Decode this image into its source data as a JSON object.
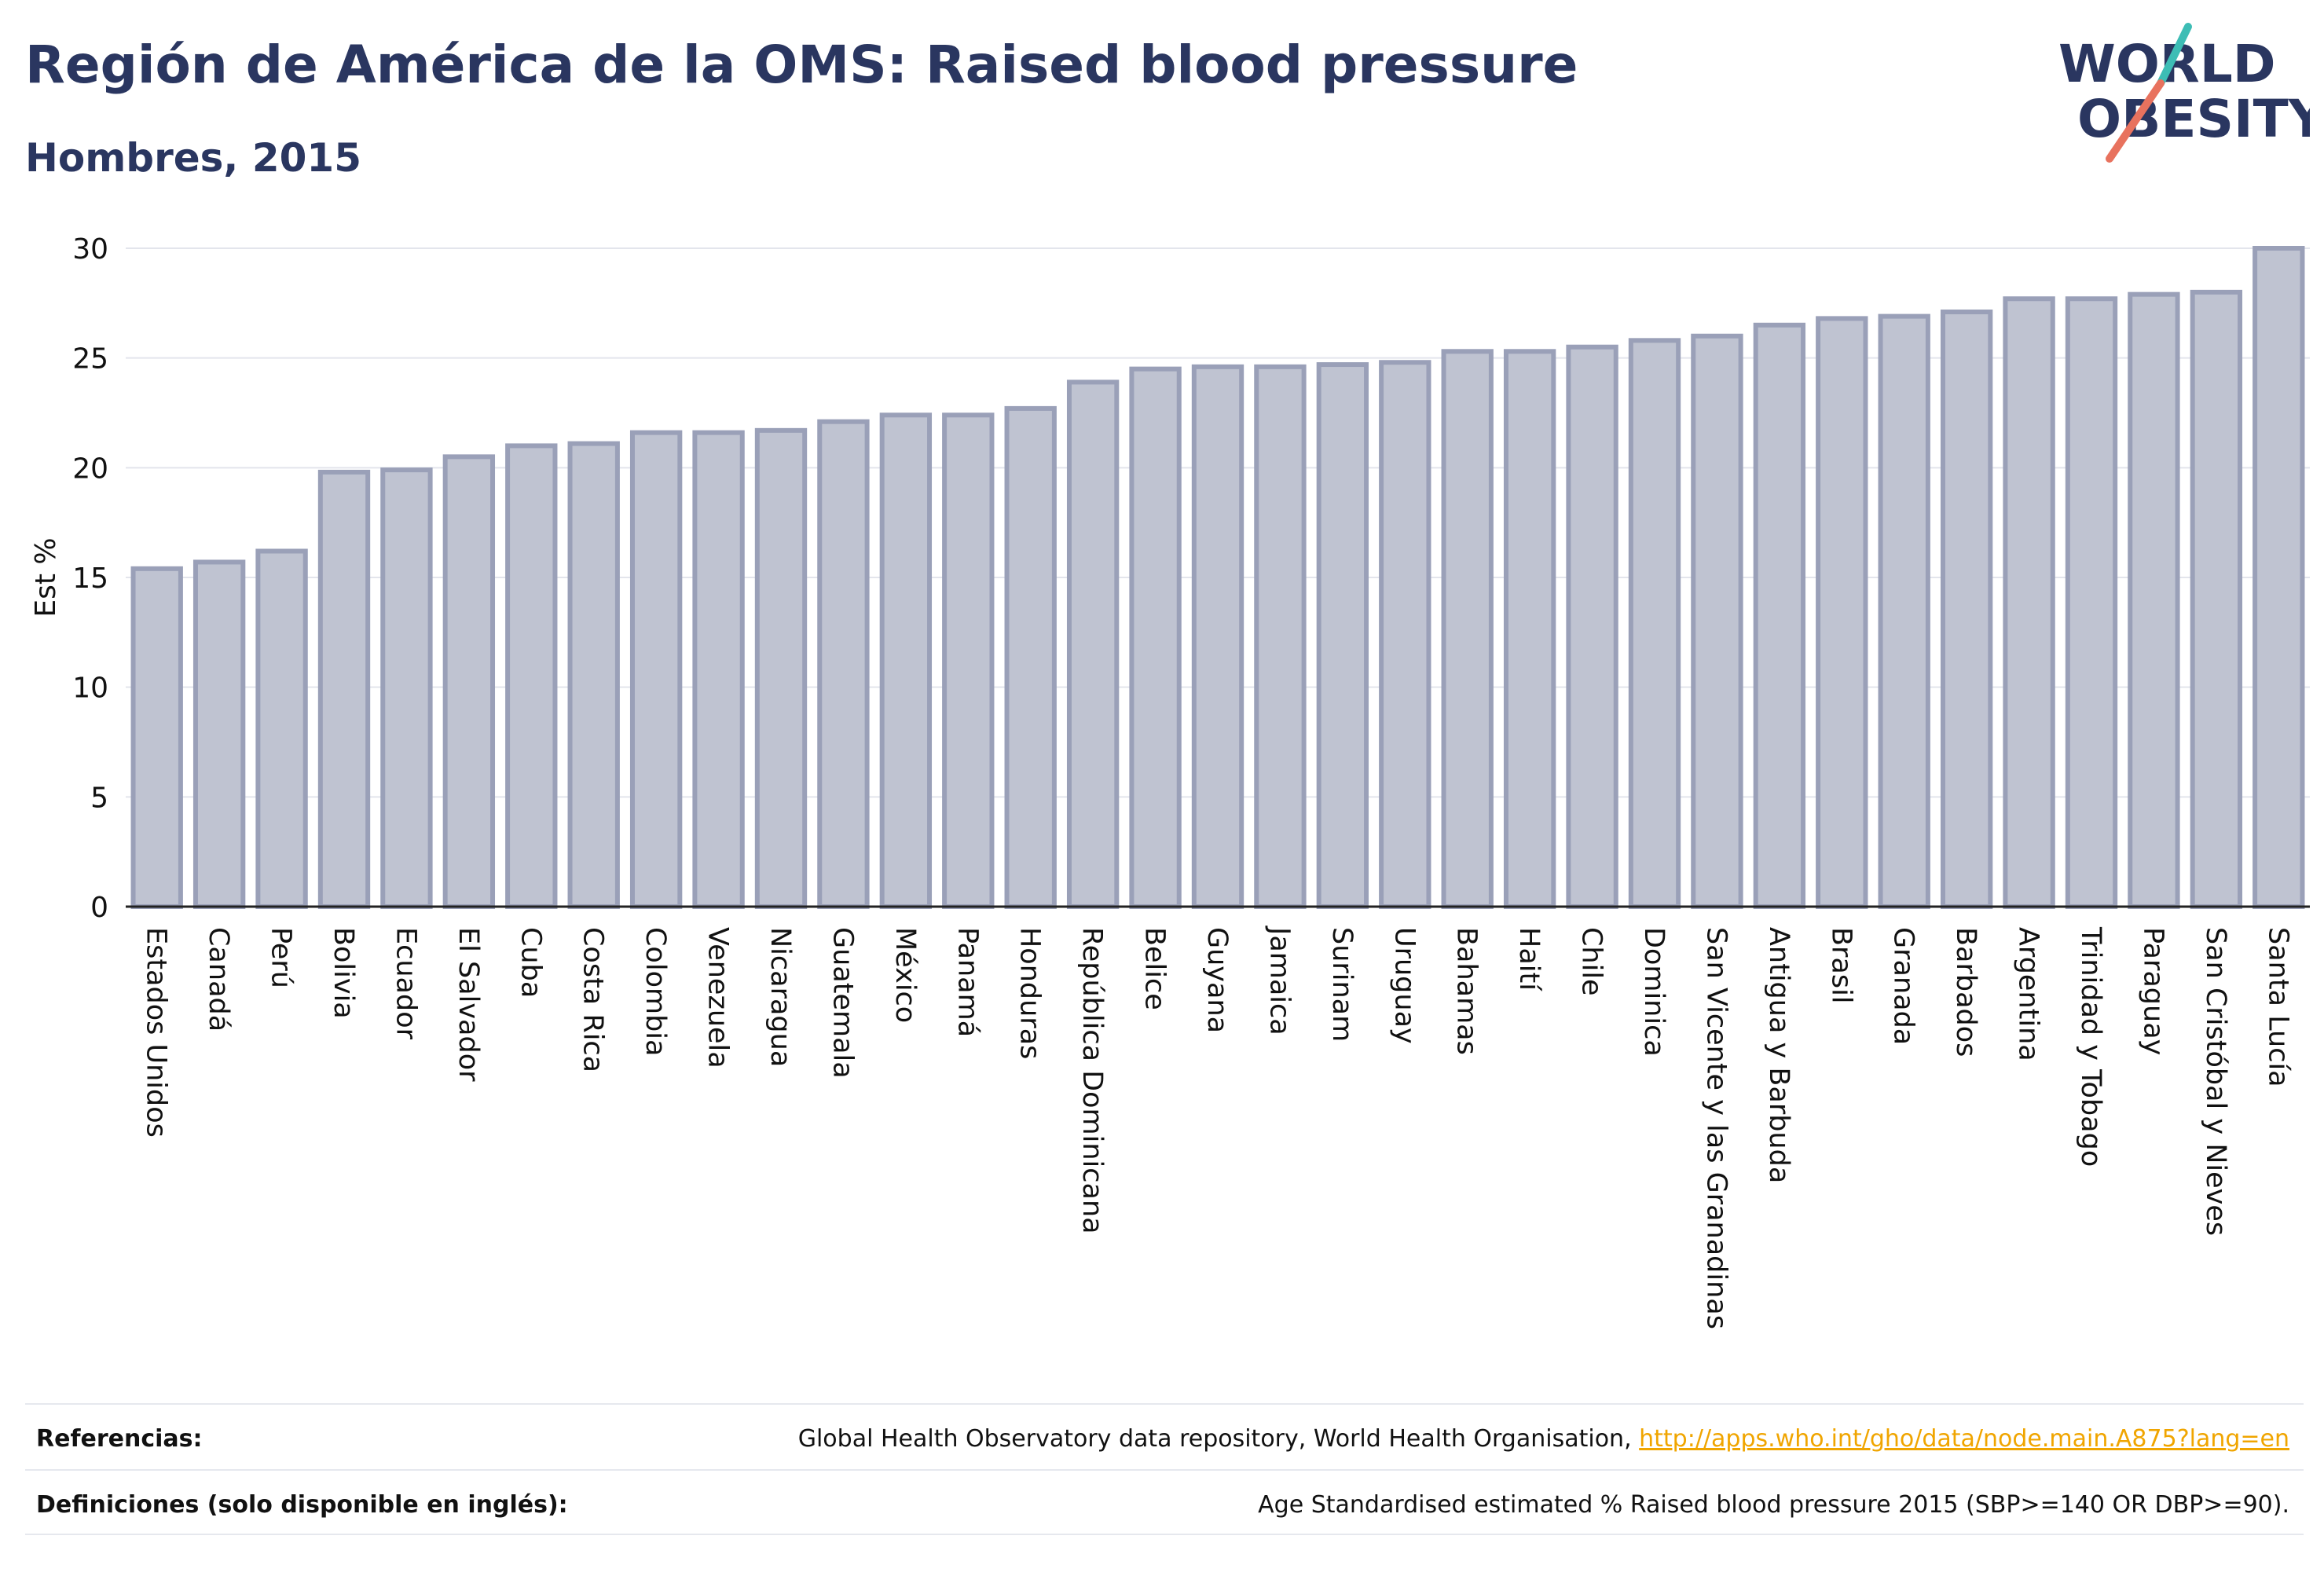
{
  "header": {
    "title": "Región de América de la OMS: Raised blood pressure",
    "subtitle": "Hombres, 2015"
  },
  "logo": {
    "line1": "WORLD",
    "line2": "OBESITY",
    "colors": {
      "text": "#2a3660",
      "slash_teal": "#3dbdb5",
      "slash_coral": "#e8725e"
    }
  },
  "chart_data": {
    "type": "bar",
    "title": "",
    "xlabel": "",
    "ylabel": "Est %",
    "ylim": [
      0,
      30
    ],
    "yticks": [
      0,
      5,
      10,
      15,
      20,
      25,
      30
    ],
    "grid": true,
    "bar_color": "#bfc3d1",
    "bar_edge_color": "#9aa0b8",
    "categories": [
      "Estados Unidos",
      "Canadá",
      "Perú",
      "Bolivia",
      "Ecuador",
      "El Salvador",
      "Cuba",
      "Costa Rica",
      "Colombia",
      "Venezuela",
      "Nicaragua",
      "Guatemala",
      "México",
      "Panamá",
      "Honduras",
      "República Dominicana",
      "Belice",
      "Guyana",
      "Jamaica",
      "Surinam",
      "Uruguay",
      "Bahamas",
      "Haití",
      "Chile",
      "Dominica",
      "San Vicente y las Granadinas",
      "Antigua y Barbuda",
      "Brasil",
      "Granada",
      "Barbados",
      "Argentina",
      "Trinidad y Tobago",
      "Paraguay",
      "San Cristóbal y Nieves",
      "Santa Lucía"
    ],
    "values": [
      15.4,
      15.7,
      16.2,
      19.8,
      19.9,
      20.5,
      21.0,
      21.1,
      21.6,
      21.6,
      21.7,
      22.1,
      22.4,
      22.4,
      22.7,
      23.9,
      24.5,
      24.6,
      24.6,
      24.7,
      24.8,
      25.3,
      25.3,
      25.5,
      25.8,
      26.0,
      26.5,
      26.8,
      26.9,
      27.1,
      27.7,
      27.7,
      27.9,
      28.0,
      30.0
    ]
  },
  "footer": {
    "references_label": "Referencias:",
    "references_text": "Global Health Observatory data repository, World Health Organisation, ",
    "references_link": "http://apps.who.int/gho/data/node.main.A875?lang=en",
    "definitions_label": "Definiciones (solo disponible en inglés):",
    "definitions_text": "Age Standardised estimated % Raised blood pressure 2015 (SBP>=140 OR DBP>=90)."
  }
}
